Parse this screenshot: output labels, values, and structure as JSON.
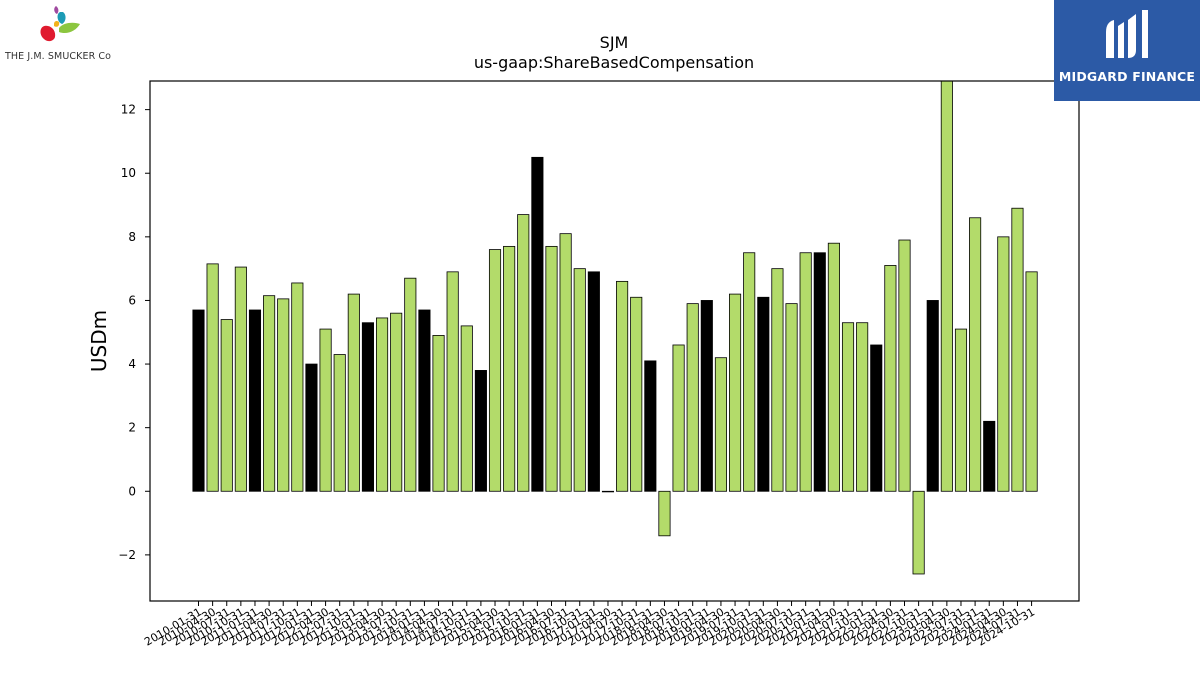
{
  "header": {
    "ticker": "SJM",
    "metric": "us-gaap:ShareBasedCompensation"
  },
  "logos": {
    "left_brand": "THE J.M. SMUCKER Co",
    "right_brand": "MIDGARD FINANCE"
  },
  "colors": {
    "annual_bar": "#000000",
    "quarter_bar": "#b3db6a",
    "bar_edge": "#000000",
    "midgard_blue": "#2c5aa6"
  },
  "chart_data": {
    "type": "bar",
    "title": "SJM",
    "subtitle": "us-gaap:ShareBasedCompensation",
    "xlabel": "",
    "ylabel": "USDm",
    "ylim": [
      -3.45,
      12.9
    ],
    "yticks": [
      -2,
      0,
      2,
      4,
      6,
      8,
      10,
      12
    ],
    "grid": false,
    "legend": "none",
    "categories": [
      "2010-01-31",
      "2010-04-30",
      "2010-07-31",
      "2010-10-31",
      "2011-01-31",
      "2011-04-30",
      "2011-07-31",
      "2011-10-31",
      "2012-01-31",
      "2012-04-30",
      "2012-07-31",
      "2012-10-31",
      "2013-01-31",
      "2013-04-30",
      "2013-07-31",
      "2013-10-31",
      "2014-01-31",
      "2014-04-30",
      "2014-07-31",
      "2014-10-31",
      "2015-01-31",
      "2015-04-30",
      "2015-07-31",
      "2015-10-31",
      "2016-01-31",
      "2016-04-30",
      "2016-07-31",
      "2016-10-31",
      "2017-01-31",
      "2017-04-30",
      "2017-07-31",
      "2017-10-31",
      "2018-01-31",
      "2018-04-30",
      "2018-07-31",
      "2018-10-31",
      "2019-01-31",
      "2019-04-30",
      "2019-07-31",
      "2019-10-31",
      "2020-01-31",
      "2020-04-30",
      "2020-07-31",
      "2020-10-31",
      "2021-01-31",
      "2021-04-30",
      "2021-07-31",
      "2021-10-31",
      "2022-01-31",
      "2022-04-30",
      "2022-07-31",
      "2022-10-31",
      "2023-01-31",
      "2023-04-30",
      "2023-07-31",
      "2023-10-31",
      "2024-01-31",
      "2024-04-30",
      "2024-07-31",
      "2024-10-31"
    ],
    "values": [
      5.7,
      7.15,
      5.4,
      7.05,
      5.7,
      6.15,
      6.05,
      6.55,
      4.0,
      5.1,
      4.3,
      6.2,
      5.3,
      5.45,
      5.6,
      6.7,
      5.7,
      4.9,
      6.9,
      5.2,
      3.8,
      7.6,
      7.7,
      8.7,
      10.5,
      7.7,
      8.1,
      7.0,
      6.9,
      0.0,
      6.6,
      6.1,
      4.1,
      -1.4,
      4.6,
      5.9,
      6.0,
      4.2,
      6.2,
      7.5,
      6.1,
      7.0,
      5.9,
      7.5,
      7.5,
      7.8,
      5.3,
      5.3,
      4.6,
      7.1,
      7.9,
      -2.6,
      6.0,
      12.9,
      5.1,
      8.6,
      2.2,
      8.0,
      8.9,
      6.9
    ],
    "bar_kind": [
      "annual",
      "quarter",
      "quarter",
      "quarter",
      "annual",
      "quarter",
      "quarter",
      "quarter",
      "annual",
      "quarter",
      "quarter",
      "quarter",
      "annual",
      "quarter",
      "quarter",
      "quarter",
      "annual",
      "quarter",
      "quarter",
      "quarter",
      "annual",
      "quarter",
      "quarter",
      "quarter",
      "annual",
      "quarter",
      "quarter",
      "quarter",
      "annual",
      "quarter",
      "quarter",
      "quarter",
      "annual",
      "quarter",
      "quarter",
      "quarter",
      "annual",
      "quarter",
      "quarter",
      "quarter",
      "annual",
      "quarter",
      "quarter",
      "quarter",
      "annual",
      "quarter",
      "quarter",
      "quarter",
      "annual",
      "quarter",
      "quarter",
      "quarter",
      "annual",
      "quarter",
      "quarter",
      "quarter",
      "annual",
      "quarter",
      "quarter",
      "quarter"
    ]
  }
}
